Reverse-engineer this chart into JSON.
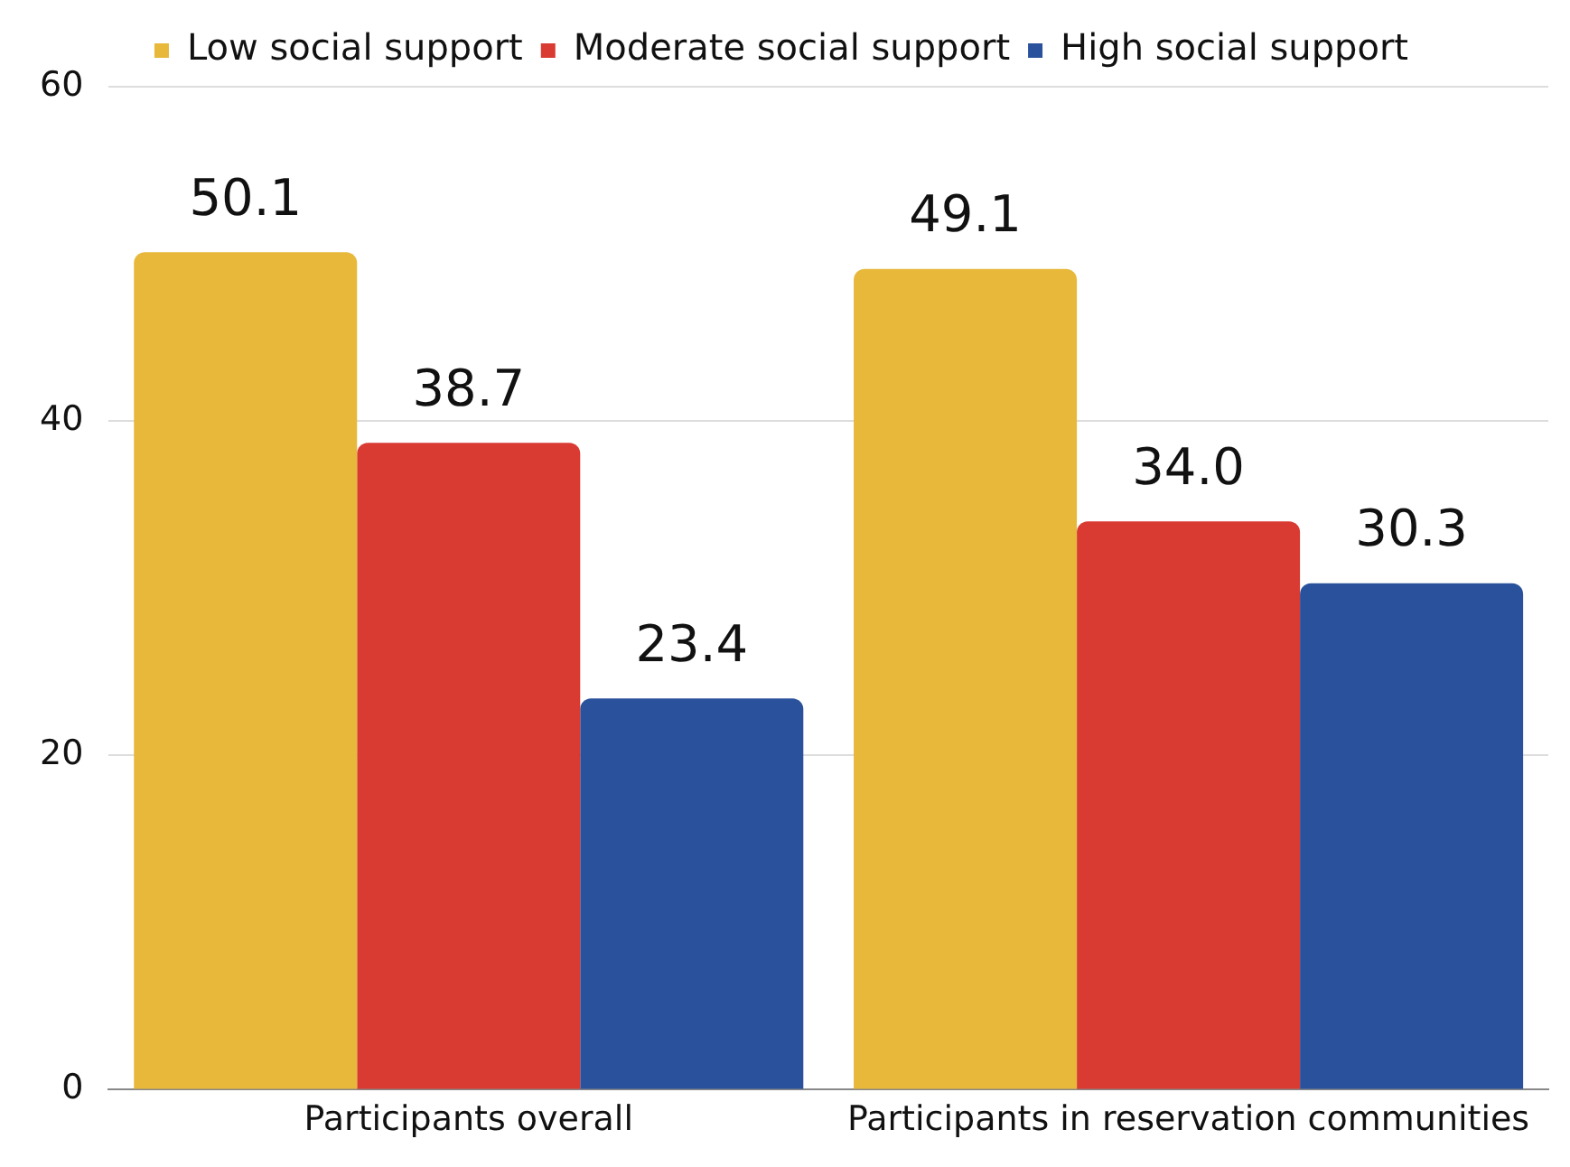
{
  "chart_data": {
    "type": "bar",
    "categories": [
      "Participants overall",
      "Participants in reservation communities"
    ],
    "series": [
      {
        "name": "Low social support",
        "color": "#e8b83a",
        "values": [
          50.1,
          49.1
        ]
      },
      {
        "name": "Moderate social support",
        "color": "#d93a31",
        "values": [
          38.7,
          34.0
        ]
      },
      {
        "name": "High social support",
        "color": "#2a529c",
        "values": [
          23.4,
          30.3
        ]
      }
    ],
    "value_labels": [
      [
        "50.1",
        "49.1"
      ],
      [
        "38.7",
        "34.0"
      ],
      [
        "23.4",
        "30.3"
      ]
    ],
    "ylim": [
      0,
      60
    ],
    "yticks": [
      0,
      20,
      40,
      60
    ],
    "grid": "y",
    "legend": "top"
  }
}
